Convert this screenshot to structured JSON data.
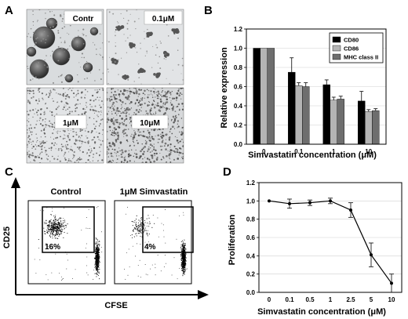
{
  "panel_letters": [
    "A",
    "B",
    "C",
    "D"
  ],
  "panel_a": {
    "images": [
      {
        "label": "Contr"
      },
      {
        "label": "0.1μM"
      },
      {
        "label": "1μM"
      },
      {
        "label": "10μM"
      }
    ]
  },
  "panel_c": {
    "plots": [
      {
        "title": "Control",
        "gate_percent": "16%"
      },
      {
        "title": "1μM Simvastatin",
        "gate_percent": "4%"
      }
    ],
    "x_axis_label": "CFSE",
    "y_axis_label": "CD25"
  },
  "chart_data": [
    {
      "panel": "B",
      "type": "bar",
      "categories": [
        "0",
        "0.1",
        "1",
        "10"
      ],
      "series": [
        {
          "name": "CD80",
          "color": "#000000",
          "values": [
            1.0,
            0.75,
            0.62,
            0.45
          ],
          "errors": [
            0.0,
            0.15,
            0.05,
            0.1
          ]
        },
        {
          "name": "CD86",
          "color": "#b4b4b4",
          "values": [
            1.0,
            0.61,
            0.46,
            0.34
          ],
          "errors": [
            0.0,
            0.03,
            0.03,
            0.02
          ]
        },
        {
          "name": "MHC class II",
          "color": "#6e6e6e",
          "values": [
            1.0,
            0.6,
            0.47,
            0.35
          ],
          "errors": [
            0.0,
            0.04,
            0.03,
            0.02
          ]
        }
      ],
      "xlabel": "Simvastatin concentration (μM)",
      "ylabel": "Relative expression",
      "ylim": [
        0,
        1.2
      ],
      "yticks": [
        0.0,
        0.2,
        0.4,
        0.6,
        0.8,
        1.0,
        1.2
      ],
      "legend_position": "top-right"
    },
    {
      "panel": "D",
      "type": "line",
      "x": [
        "0",
        "0.1",
        "0.5",
        "1",
        "2.5",
        "5",
        "10"
      ],
      "values": [
        1.0,
        0.97,
        0.98,
        1.0,
        0.9,
        0.41,
        0.1
      ],
      "errors": [
        0.0,
        0.05,
        0.03,
        0.03,
        0.08,
        0.13,
        0.1
      ],
      "xlabel": "Simvastatin concentration (μM)",
      "ylabel": "Proliferation",
      "ylim": [
        0,
        1.2
      ],
      "yticks": [
        0.0,
        0.2,
        0.4,
        0.6,
        0.8,
        1.0,
        1.2
      ]
    }
  ]
}
